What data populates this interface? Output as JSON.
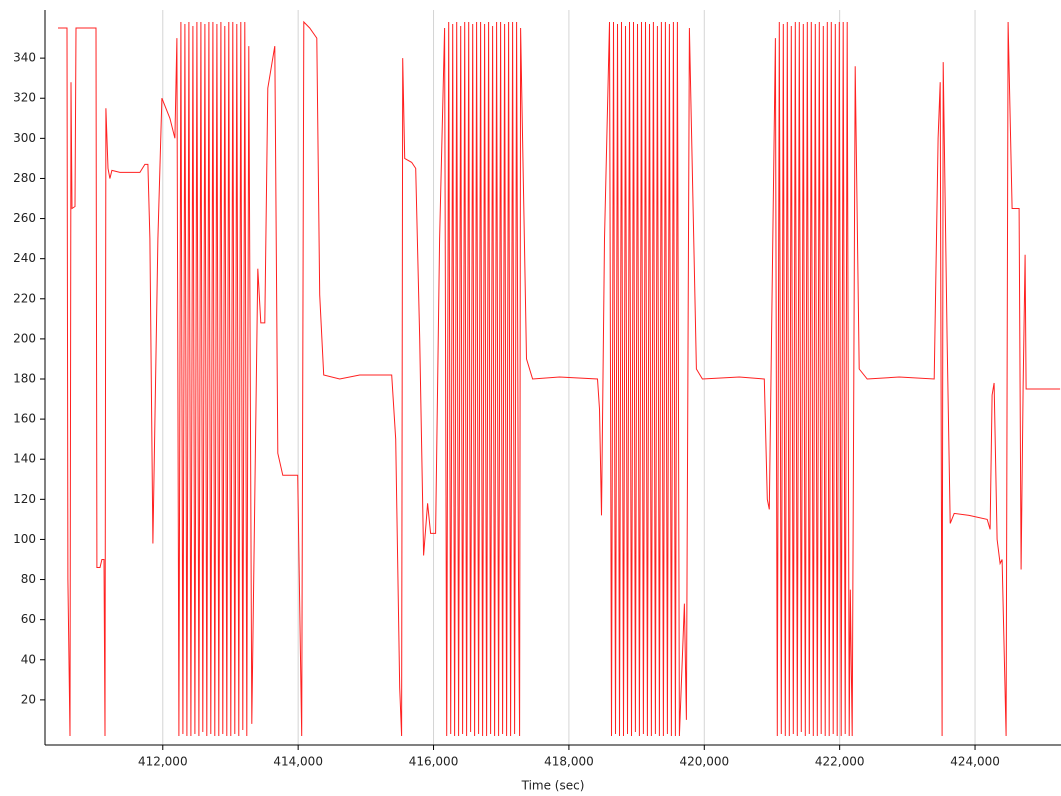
{
  "chart_data": {
    "type": "line",
    "xlabel": "Time (sec)",
    "xlim": [
      410260,
      425270
    ],
    "ylim": [
      -2.5,
      364
    ],
    "xticks": [
      {
        "value": 412000,
        "label": "412,000"
      },
      {
        "value": 414000,
        "label": "414,000"
      },
      {
        "value": 416000,
        "label": "416,000"
      },
      {
        "value": 418000,
        "label": "418,000"
      },
      {
        "value": 420000,
        "label": "420,000"
      },
      {
        "value": 422000,
        "label": "422,000"
      },
      {
        "value": 424000,
        "label": "424,000"
      }
    ],
    "yticks": [
      20,
      40,
      60,
      80,
      100,
      120,
      140,
      160,
      180,
      200,
      220,
      240,
      260,
      280,
      300,
      320,
      340
    ],
    "grid": "x",
    "series": [
      {
        "color": "#ff2020",
        "x": [
          410452,
          410585,
          410599,
          410629,
          410644,
          410659,
          410703,
          410718,
          411013,
          411027,
          411072,
          411101,
          411131,
          411146,
          411160,
          411190,
          411219,
          411249,
          411367,
          411662,
          411736,
          411780,
          411810,
          411854,
          411928,
          411987,
          412105,
          412179,
          412208,
          412238,
          412268,
          412297,
          412327,
          412356,
          412386,
          412415,
          412445,
          412474,
          412504,
          412533,
          412563,
          412592,
          412622,
          412651,
          412681,
          412710,
          412740,
          412769,
          412799,
          412828,
          412858,
          412887,
          412917,
          412946,
          412976,
          413005,
          413035,
          413064,
          413094,
          413123,
          413153,
          413182,
          413212,
          413241,
          413271,
          413315,
          413404,
          413448,
          413507,
          413551,
          413655,
          413699,
          413773,
          413994,
          414053,
          414083,
          414171,
          414275,
          414319,
          414378,
          414614,
          414909,
          415382,
          415441,
          415500,
          415529,
          415544,
          415574,
          415677,
          415736,
          415795,
          415854,
          415913,
          415957,
          416031,
          416090,
          416164,
          416194,
          416224,
          416253,
          416283,
          416312,
          416342,
          416371,
          416401,
          416430,
          416460,
          416489,
          416519,
          416548,
          416578,
          416607,
          416637,
          416666,
          416696,
          416725,
          416755,
          416784,
          416814,
          416843,
          416873,
          416902,
          416932,
          416961,
          416991,
          417020,
          417050,
          417079,
          417109,
          417138,
          417168,
          417197,
          417227,
          417256,
          417271,
          417286,
          417374,
          417463,
          417861,
          418422,
          418452,
          418481,
          418526,
          418599,
          418629,
          418659,
          418688,
          418718,
          418747,
          418777,
          418806,
          418836,
          418865,
          418895,
          418924,
          418954,
          418983,
          419013,
          419042,
          419072,
          419101,
          419131,
          419160,
          419190,
          419219,
          419249,
          419278,
          419308,
          419337,
          419367,
          419396,
          419426,
          419455,
          419485,
          419514,
          419544,
          419573,
          419603,
          419632,
          419706,
          419736,
          419780,
          419884,
          419972,
          420518,
          420887,
          420931,
          420961,
          421050,
          421079,
          421109,
          421138,
          421168,
          421197,
          421227,
          421256,
          421286,
          421315,
          421345,
          421374,
          421404,
          421433,
          421463,
          421492,
          421522,
          421551,
          421581,
          421610,
          421640,
          421669,
          421699,
          421728,
          421758,
          421787,
          421817,
          421846,
          421876,
          421905,
          421935,
          421964,
          421994,
          422023,
          422053,
          422082,
          422112,
          422141,
          422157,
          422186,
          422230,
          422289,
          422407,
          422880,
          423396,
          423455,
          423485,
          423514,
          423529,
          423588,
          423633,
          423692,
          423913,
          424179,
          424223,
          424252,
          424282,
          424326,
          424371,
          424400,
          424459,
          424489,
          424548,
          424651,
          424681,
          424710,
          424740,
          424755,
          425256
        ],
        "values": [
          355,
          355,
          80,
          2,
          328,
          265,
          266,
          355,
          355,
          86,
          86,
          90,
          90,
          2,
          315,
          285,
          280,
          284,
          283,
          283,
          287,
          287,
          250,
          98,
          250,
          320,
          310,
          300,
          350,
          2,
          358,
          3,
          357,
          2,
          358,
          2,
          356,
          3,
          358,
          2,
          358,
          4,
          357,
          2,
          358,
          3,
          358,
          2,
          357,
          2,
          358,
          3,
          356,
          2,
          358,
          2,
          358,
          3,
          357,
          2,
          358,
          5,
          358,
          2,
          346,
          8,
          235,
          208,
          208,
          325,
          346,
          143,
          132,
          132,
          2,
          358,
          355,
          350,
          222,
          182,
          180,
          182,
          182,
          150,
          26,
          2,
          340,
          290,
          288,
          285,
          200,
          92,
          118,
          103,
          103,
          250,
          355,
          2,
          358,
          3,
          357,
          2,
          358,
          2,
          356,
          3,
          358,
          2,
          358,
          4,
          357,
          2,
          358,
          3,
          358,
          2,
          357,
          2,
          358,
          3,
          356,
          2,
          358,
          2,
          358,
          3,
          357,
          2,
          358,
          2,
          358,
          3,
          358,
          78,
          2,
          355,
          190,
          180,
          181,
          180,
          165,
          112,
          250,
          358,
          2,
          358,
          3,
          357,
          2,
          358,
          2,
          356,
          3,
          358,
          2,
          358,
          4,
          357,
          2,
          358,
          3,
          358,
          2,
          357,
          2,
          358,
          3,
          356,
          2,
          358,
          2,
          358,
          3,
          357,
          2,
          358,
          2,
          358,
          2,
          68,
          10,
          355,
          185,
          180,
          181,
          180,
          120,
          115,
          350,
          2,
          358,
          3,
          357,
          2,
          358,
          2,
          356,
          3,
          358,
          2,
          358,
          4,
          357,
          2,
          358,
          3,
          358,
          2,
          357,
          2,
          358,
          3,
          356,
          2,
          358,
          2,
          358,
          3,
          357,
          2,
          358,
          2,
          358,
          3,
          358,
          2,
          75,
          2,
          336,
          185,
          180,
          181,
          180,
          300,
          328,
          2,
          338,
          200,
          108,
          113,
          112,
          110,
          105,
          172,
          178,
          100,
          88,
          90,
          2,
          358,
          265,
          265,
          85,
          175,
          242,
          175,
          175
        ]
      }
    ]
  }
}
